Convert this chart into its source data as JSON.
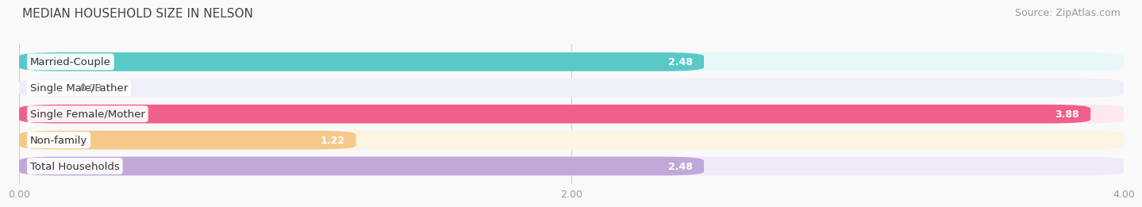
{
  "title": "MEDIAN HOUSEHOLD SIZE IN NELSON",
  "source": "Source: ZipAtlas.com",
  "categories": [
    "Married-Couple",
    "Single Male/Father",
    "Single Female/Mother",
    "Non-family",
    "Total Households"
  ],
  "values": [
    2.48,
    0.0,
    3.88,
    1.22,
    2.48
  ],
  "bar_colors": [
    "#5BC8C8",
    "#A8B8E8",
    "#F0608A",
    "#F5C98A",
    "#C0A8D8"
  ],
  "bar_bg_colors": [
    "#EAFAFAFA",
    "#F0F2FA",
    "#FDEEF4",
    "#FEF6EA",
    "#F2EEF8"
  ],
  "xlim": [
    0,
    4.0
  ],
  "xticks": [
    0.0,
    2.0,
    4.0
  ],
  "xtick_labels": [
    "0.00",
    "2.00",
    "4.00"
  ],
  "title_fontsize": 11,
  "source_fontsize": 9,
  "label_fontsize": 9.5,
  "value_fontsize": 9,
  "tick_fontsize": 9,
  "bar_height": 0.72,
  "background_color": "#f9f9f9"
}
